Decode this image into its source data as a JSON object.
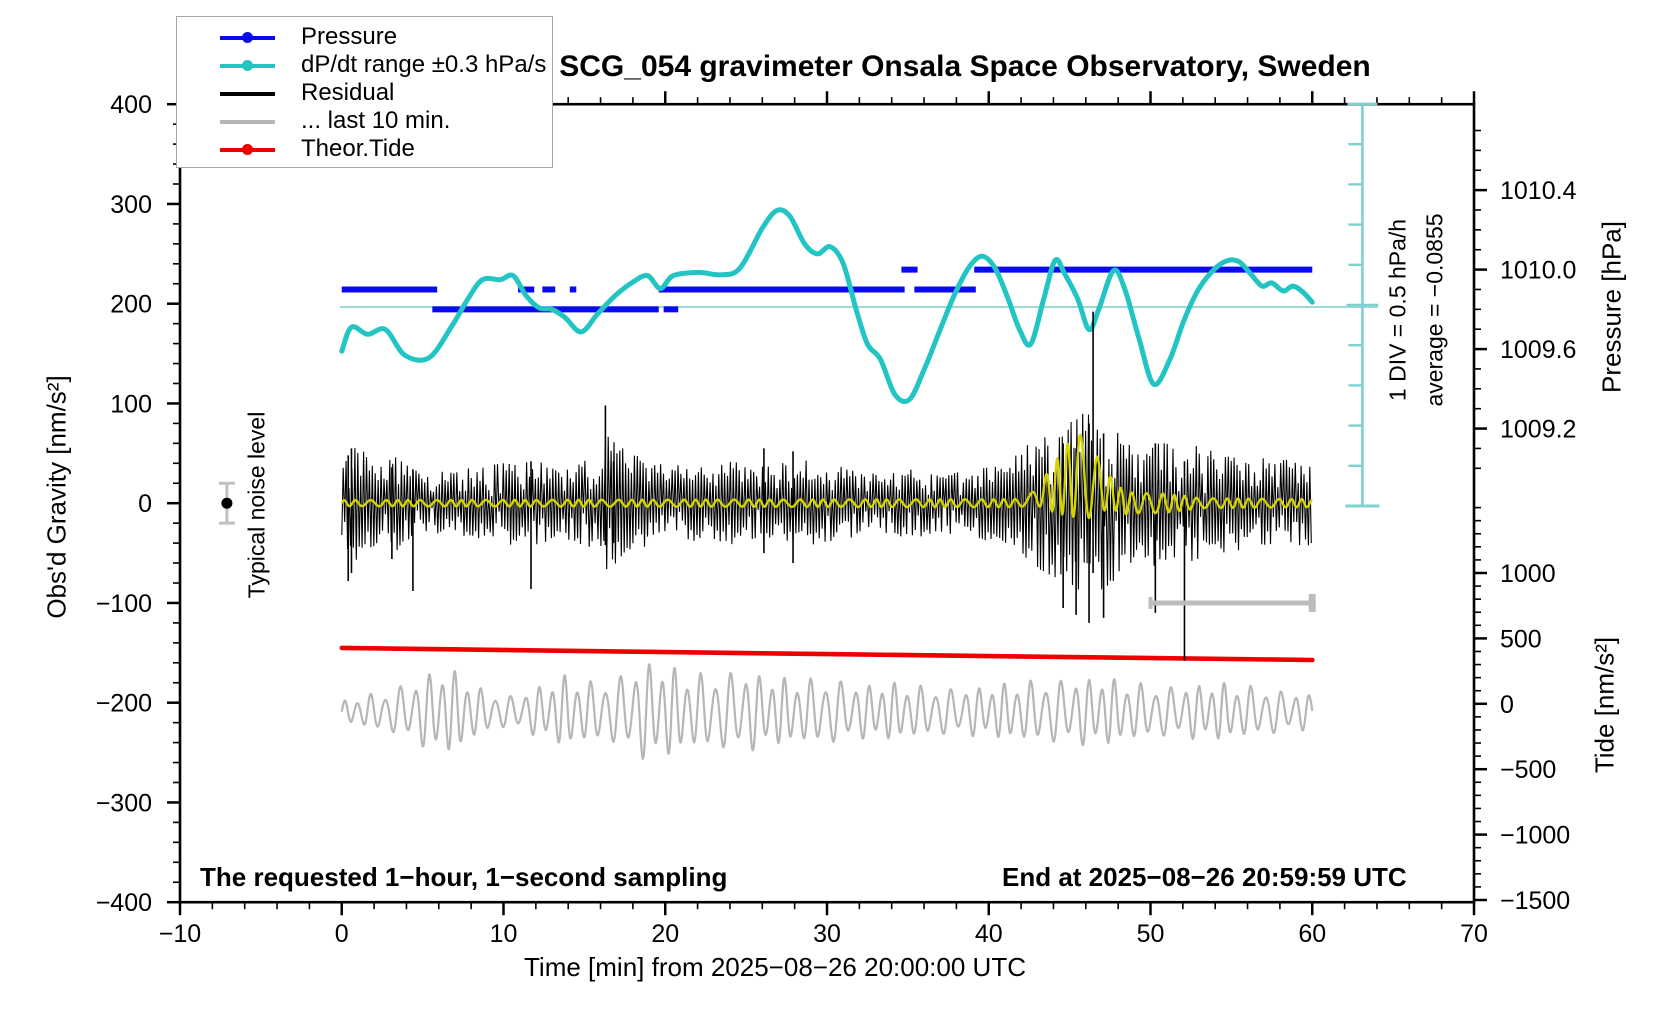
{
  "title": "SCG_054 gravimeter Onsala Space Observatory, Sweden",
  "legend": {
    "items": [
      {
        "label": "Pressure",
        "color": "#0a0af0",
        "marker": "line-dot"
      },
      {
        "label": "dP/dt range ±0.3 hPa/s",
        "color": "#22c4c4",
        "marker": "line-dot"
      },
      {
        "label": "Residual",
        "color": "#000000",
        "marker": "line"
      },
      {
        "label": "... last 10 min.",
        "color": "#b6b6b6",
        "marker": "line"
      },
      {
        "label": "Theor.Tide",
        "color": "#ee0000",
        "marker": "line-dot"
      }
    ]
  },
  "annotations": {
    "div_scale": "1 DIV = 0.5 hPa/h",
    "average": "average = −0.0855",
    "noise_level": "Typical noise level",
    "sampling_note": "The requested 1−hour, 1−second sampling",
    "end_note": "End at 2025−08−26 20:59:59 UTC"
  },
  "chart_data": {
    "type": "line",
    "title": "SCG_054 gravimeter Onsala Space Observatory, Sweden",
    "x_axis": {
      "label": "Time [min] from 2025−08−26 20:00:00 UTC",
      "range": [
        -10,
        70
      ],
      "major_tick": 10,
      "minor_tick": 2
    },
    "y_gravity": {
      "label": "Obs'd Gravity [nm/s²]",
      "range": [
        -400,
        400
      ],
      "major_tick": 100,
      "minor_tick": 20
    },
    "y_pressure": {
      "label": "Pressure [hPa]",
      "tick_labels": [
        1010.4,
        1010.0,
        1009.6,
        1009.2
      ],
      "minor_tick": 0.1,
      "minor_range": [
        1009.0,
        1010.7
      ]
    },
    "y_tide": {
      "label": "Tide [nm/s²]",
      "tick_labels": [
        1000,
        500,
        0,
        -500,
        -1000,
        -1500
      ],
      "minor_tick": 100,
      "minor_range": [
        -1500,
        1500
      ]
    },
    "grid": false,
    "legend_position": "top-left",
    "series": {
      "pressure_steps_hPa": [
        [
          0,
          5.9,
          1009.9
        ],
        [
          5.6,
          19.6,
          1009.8
        ],
        [
          19.9,
          20.8,
          1009.8
        ],
        [
          10.9,
          11.9,
          1009.9
        ],
        [
          12.4,
          13.2,
          1009.9
        ],
        [
          14.1,
          14.5,
          1009.9
        ],
        [
          19.6,
          34.8,
          1009.9
        ],
        [
          35.4,
          39.2,
          1009.9
        ],
        [
          34.6,
          35.6,
          1010.0
        ],
        [
          39.1,
          60.0,
          1010.0
        ]
      ],
      "dpdt_hPa_per_h": [
        [
          0,
          -0.55
        ],
        [
          0.6,
          -0.25
        ],
        [
          1.6,
          -0.34
        ],
        [
          2.7,
          -0.28
        ],
        [
          3.9,
          -0.6
        ],
        [
          5.4,
          -0.63
        ],
        [
          6.8,
          -0.24
        ],
        [
          7.8,
          0.1
        ],
        [
          8.7,
          0.34
        ],
        [
          9.8,
          0.34
        ],
        [
          10.6,
          0.39
        ],
        [
          11.4,
          0.14
        ],
        [
          12.2,
          -0.01
        ],
        [
          13,
          -0.03
        ],
        [
          13.8,
          -0.13
        ],
        [
          14.8,
          -0.31
        ],
        [
          15.8,
          -0.09
        ],
        [
          16.9,
          0.14
        ],
        [
          18,
          0.31
        ],
        [
          18.9,
          0.39
        ],
        [
          19.7,
          0.23
        ],
        [
          20.5,
          0.39
        ],
        [
          22.1,
          0.43
        ],
        [
          23.4,
          0.4
        ],
        [
          24.6,
          0.48
        ],
        [
          26,
          0.98
        ],
        [
          26.9,
          1.2
        ],
        [
          27.7,
          1.13
        ],
        [
          28.6,
          0.79
        ],
        [
          29.4,
          0.66
        ],
        [
          30.2,
          0.75
        ],
        [
          31,
          0.54
        ],
        [
          31.8,
          -0.03
        ],
        [
          32.5,
          -0.46
        ],
        [
          33.3,
          -0.65
        ],
        [
          34.2,
          -1.09
        ],
        [
          35.1,
          -1.15
        ],
        [
          36,
          -0.78
        ],
        [
          37,
          -0.28
        ],
        [
          37.9,
          0.16
        ],
        [
          38.8,
          0.5
        ],
        [
          39.6,
          0.63
        ],
        [
          40.4,
          0.48
        ],
        [
          41.2,
          0.1
        ],
        [
          41.9,
          -0.28
        ],
        [
          42.6,
          -0.46
        ],
        [
          43.4,
          0.1
        ],
        [
          44.1,
          0.58
        ],
        [
          44.7,
          0.41
        ],
        [
          45.5,
          0.1
        ],
        [
          46.2,
          -0.28
        ],
        [
          46.8,
          -0.03
        ],
        [
          47.7,
          0.45
        ],
        [
          48.4,
          0.23
        ],
        [
          49.3,
          -0.4
        ],
        [
          50.2,
          -0.96
        ],
        [
          51.2,
          -0.65
        ],
        [
          52.1,
          -0.15
        ],
        [
          53,
          0.23
        ],
        [
          54,
          0.48
        ],
        [
          54.8,
          0.58
        ],
        [
          55.5,
          0.56
        ],
        [
          56.2,
          0.41
        ],
        [
          56.9,
          0.26
        ],
        [
          57.5,
          0.3
        ],
        [
          58.2,
          0.2
        ],
        [
          58.8,
          0.26
        ],
        [
          59.4,
          0.19
        ],
        [
          60,
          0.06
        ]
      ],
      "dpdt_zero_line": 0,
      "dpdt_ruler": {
        "t": 63.1,
        "divisions": 10,
        "div_value_hPa_per_h": 0.5
      },
      "residual_envelope_nm": [
        [
          0,
          38
        ],
        [
          1,
          60
        ],
        [
          2.5,
          40
        ],
        [
          3.4,
          48
        ],
        [
          4.9,
          30
        ],
        [
          8,
          36
        ],
        [
          9.9,
          42
        ],
        [
          11.7,
          46
        ],
        [
          13.6,
          34
        ],
        [
          15.5,
          46
        ],
        [
          16.4,
          70
        ],
        [
          17.6,
          55
        ],
        [
          19.2,
          40
        ],
        [
          22.3,
          38
        ],
        [
          24.1,
          44
        ],
        [
          26,
          38
        ],
        [
          27.8,
          46
        ],
        [
          29.7,
          40
        ],
        [
          31.5,
          36
        ],
        [
          33.4,
          33
        ],
        [
          35.2,
          35
        ],
        [
          37.1,
          31
        ],
        [
          38.9,
          33
        ],
        [
          40.8,
          42
        ],
        [
          42,
          55
        ],
        [
          43.3,
          70
        ],
        [
          44.5,
          80
        ],
        [
          45.7,
          90
        ],
        [
          46.7,
          95
        ],
        [
          47.6,
          80
        ],
        [
          48.5,
          70
        ],
        [
          50.1,
          65
        ],
        [
          51.3,
          60
        ],
        [
          52.2,
          65
        ],
        [
          53.2,
          55
        ],
        [
          54.4,
          50
        ],
        [
          55.6,
          48
        ],
        [
          56.9,
          46
        ],
        [
          58.1,
          44
        ],
        [
          59.3,
          43
        ],
        [
          60,
          42
        ]
      ],
      "residual_spikes_nm": [
        [
          0.4,
          48,
          -78
        ],
        [
          0.6,
          55,
          -70
        ],
        [
          3.1,
          36,
          -56
        ],
        [
          4.4,
          34,
          -88
        ],
        [
          11.7,
          42,
          -86
        ],
        [
          16.3,
          98,
          -42
        ],
        [
          16.8,
          42,
          -40
        ],
        [
          26.1,
          55,
          -50
        ],
        [
          27.9,
          52,
          -60
        ],
        [
          44.6,
          60,
          -105
        ],
        [
          45.4,
          55,
          -112
        ],
        [
          46.2,
          80,
          -120
        ],
        [
          46.45,
          192,
          -70
        ],
        [
          47.1,
          70,
          -115
        ],
        [
          50.3,
          60,
          -110
        ],
        [
          52.1,
          42,
          -158
        ]
      ],
      "filtered_yellow": {
        "envelope_nm": [
          [
            0,
            3
          ],
          [
            42.5,
            4
          ],
          [
            43.4,
            15
          ],
          [
            44.4,
            30
          ],
          [
            45.3,
            42
          ],
          [
            46.2,
            38
          ],
          [
            47.2,
            20
          ],
          [
            48.1,
            12
          ],
          [
            49.3,
            10
          ],
          [
            50.6,
            10
          ],
          [
            51.8,
            8
          ],
          [
            53,
            5
          ],
          [
            60,
            4
          ]
        ],
        "bias_nm": [
          [
            0,
            0
          ],
          [
            42,
            0
          ],
          [
            44,
            15
          ],
          [
            45.5,
            30
          ],
          [
            47,
            15
          ],
          [
            48.5,
            0
          ],
          [
            60,
            0
          ]
        ],
        "period_min": 0.8
      },
      "theor_tide_nm": [
        [
          0,
          427
        ],
        [
          30,
          380
        ],
        [
          60,
          335
        ]
      ],
      "last10_trace": {
        "center_gravity_nm": -209,
        "period_min": 0.85,
        "envelope_nm": [
          [
            0,
            10
          ],
          [
            0.6,
            14
          ],
          [
            2.5,
            20
          ],
          [
            4.3,
            30
          ],
          [
            5.9,
            45
          ],
          [
            7.4,
            40
          ],
          [
            8.7,
            22
          ],
          [
            10.5,
            16
          ],
          [
            12.4,
            28
          ],
          [
            13.9,
            38
          ],
          [
            15.5,
            30
          ],
          [
            17,
            35
          ],
          [
            18.9,
            52
          ],
          [
            20.1,
            48
          ],
          [
            21.6,
            38
          ],
          [
            23.5,
            40
          ],
          [
            25,
            42
          ],
          [
            26.6,
            36
          ],
          [
            28.4,
            33
          ],
          [
            30.3,
            34
          ],
          [
            32.1,
            28
          ],
          [
            34,
            30
          ],
          [
            35.9,
            26
          ],
          [
            37.7,
            24
          ],
          [
            39.6,
            26
          ],
          [
            41.4,
            30
          ],
          [
            43.3,
            32
          ],
          [
            45.1,
            34
          ],
          [
            47,
            36
          ],
          [
            48.8,
            30
          ],
          [
            50.7,
            26
          ],
          [
            52.5,
            28
          ],
          [
            54.4,
            30
          ],
          [
            56.2,
            26
          ],
          [
            58.1,
            22
          ],
          [
            60,
            18
          ]
        ]
      },
      "last10_bar": {
        "t1": 50,
        "t2": 60,
        "gravity_nm": -100
      },
      "noise_marker": {
        "t": -7.1,
        "gravity_nm": 0,
        "error_nm": 20
      }
    },
    "colors": {
      "pressure": "#0a0af0",
      "dpdt": "#22c4c4",
      "dpdt_thin": "#8fd6d6",
      "ruler": "#7fd0d0",
      "residual": "#000000",
      "filtered": "#d4d400",
      "tide": "#ee0000",
      "last10": "#b6b6b6",
      "bar": "#bcbcbc",
      "noise_err": "#c0c0c0"
    }
  }
}
